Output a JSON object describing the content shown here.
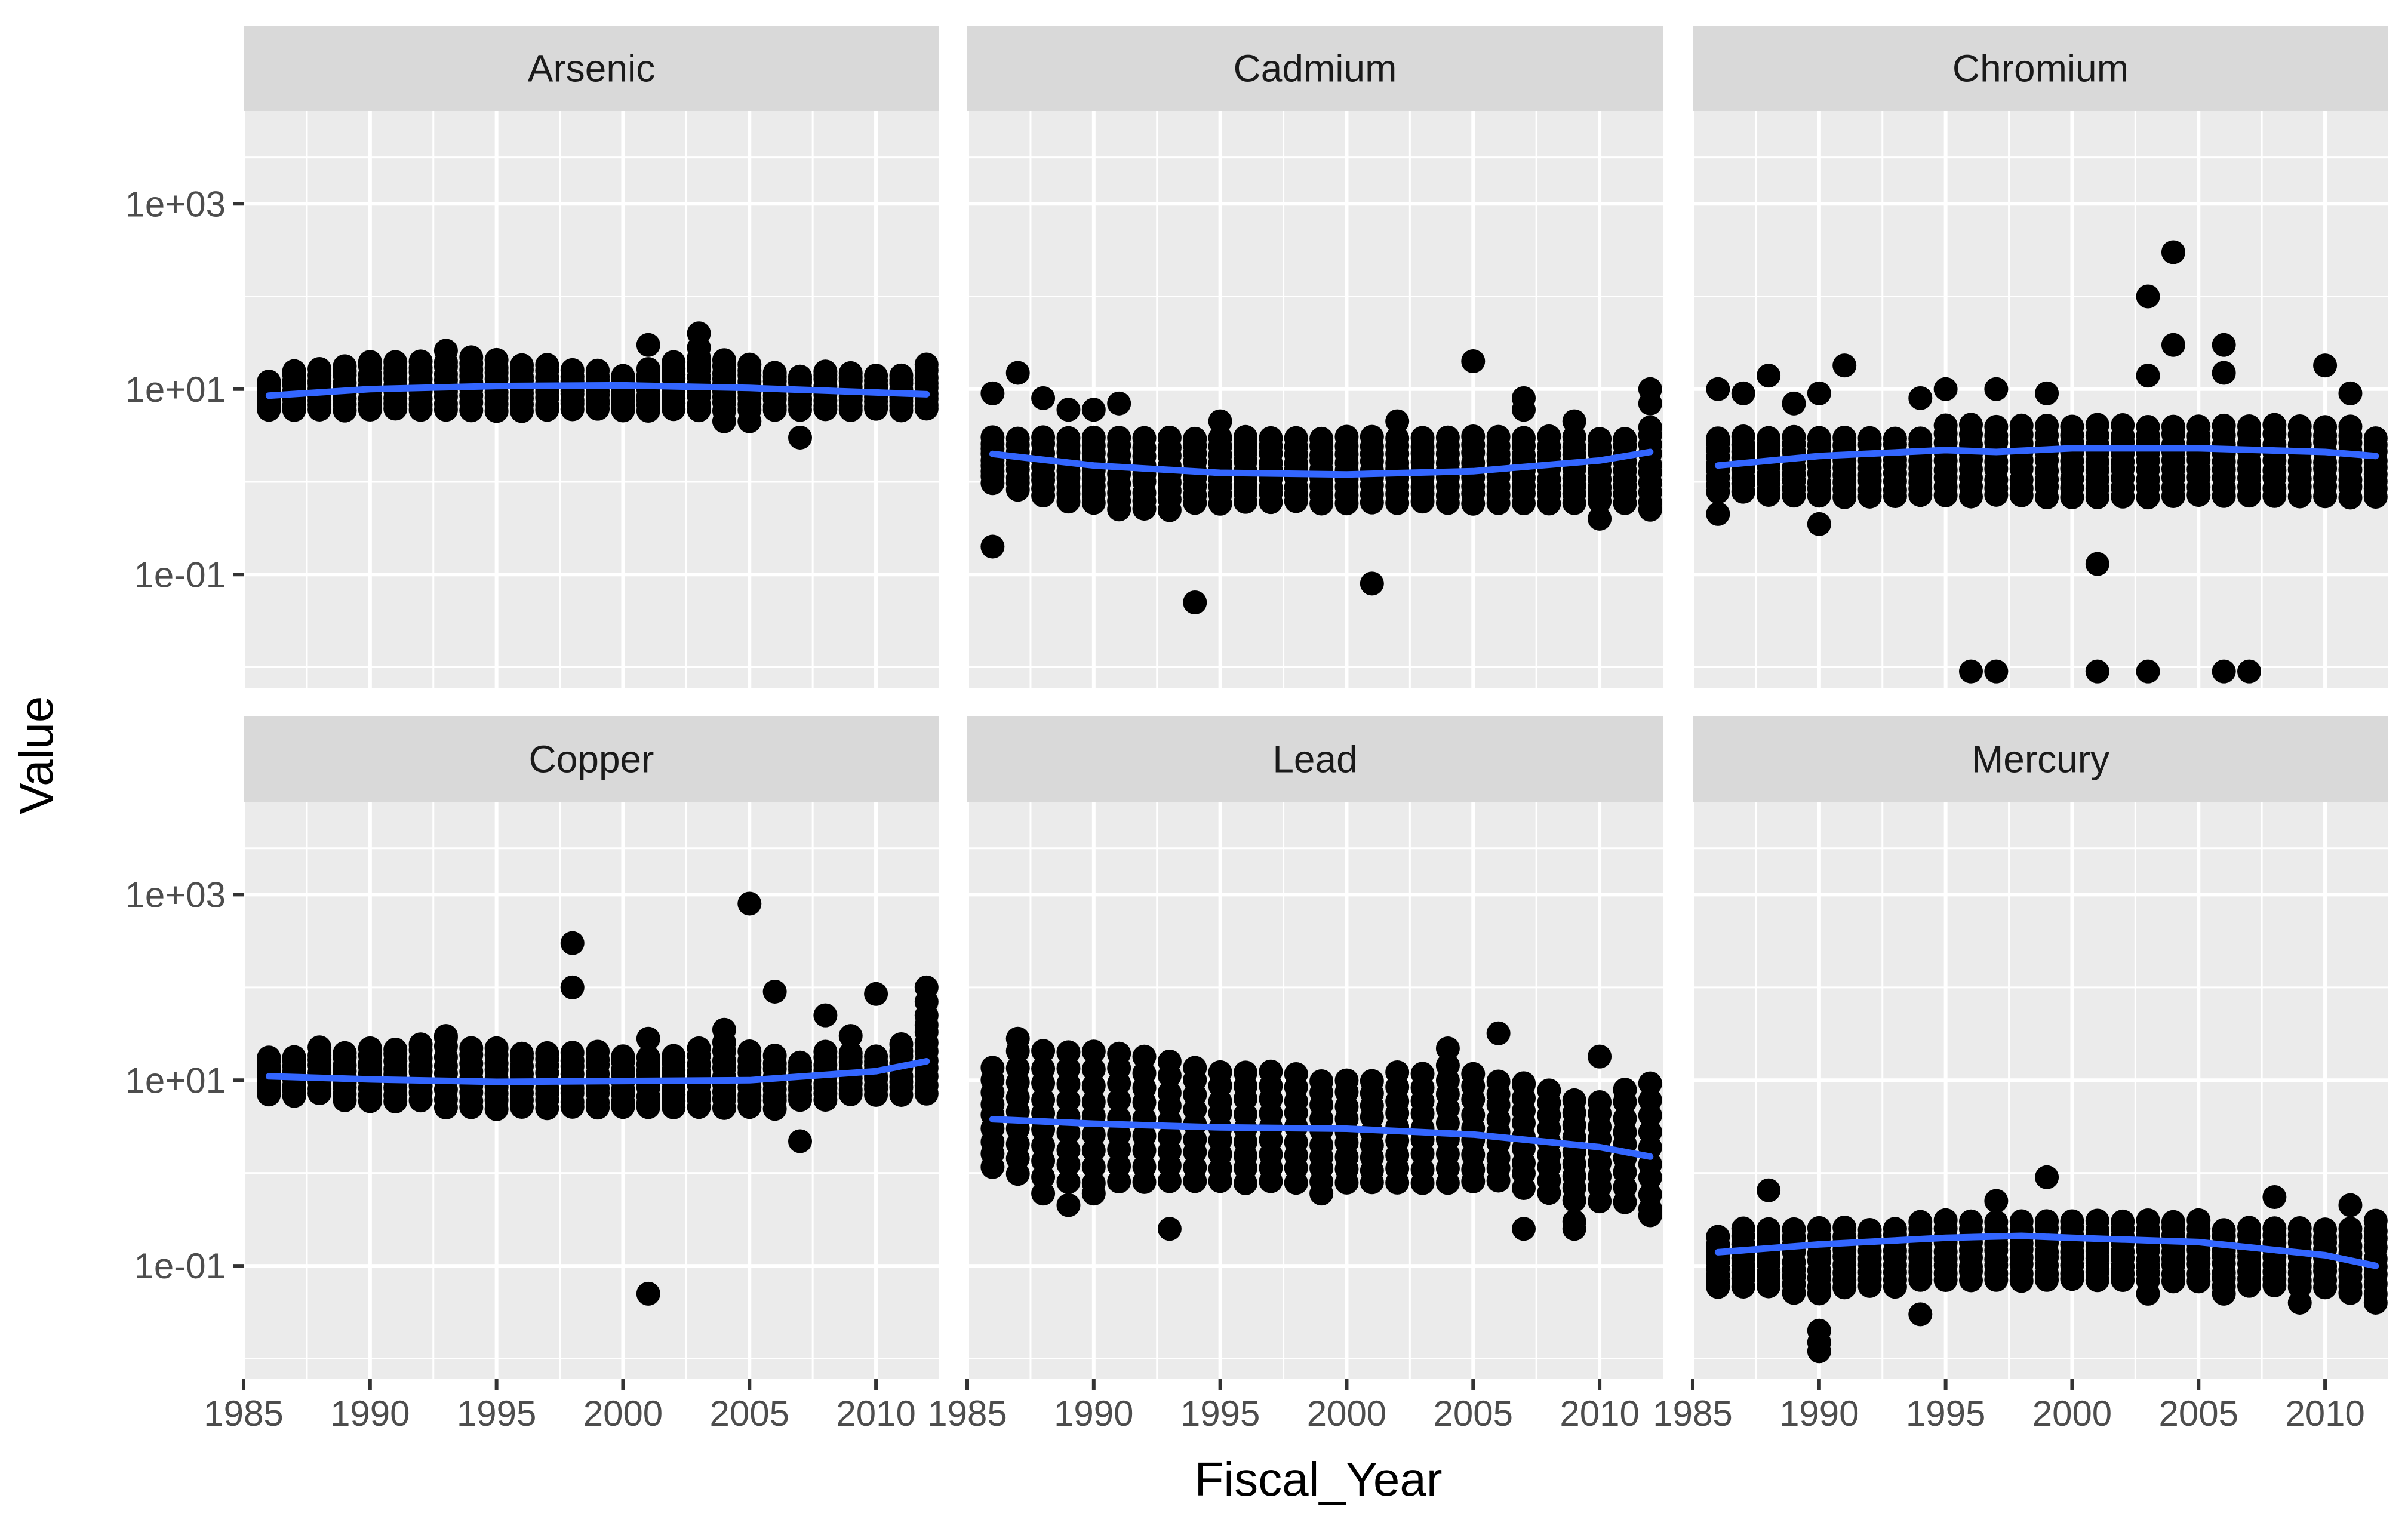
{
  "chart_data": {
    "type": "scatter",
    "layout": "facet_wrap 2x3",
    "xlabel": "Fiscal_Year",
    "ylabel": "Value",
    "x_ticks": [
      1985,
      1990,
      1995,
      2000,
      2005,
      2010
    ],
    "xlim": [
      1985,
      2012.5
    ],
    "y_scale": "log10",
    "y_ticks": [
      {
        "value": 1000,
        "label": "1e+03"
      },
      {
        "value": 10,
        "label": "1e+01"
      },
      {
        "value": 0.1,
        "label": "1e-01"
      }
    ],
    "ylim": [
      0.006,
      10000
    ],
    "grid": true,
    "point_color": "#000000",
    "smooth_color": "#3366FF",
    "panel_background": "#EBEBEB",
    "strip_background": "#D9D9D9",
    "panels": [
      {
        "name": "Arsenic",
        "band": {
          "lo": [
            6,
            6,
            6,
            6,
            6,
            6,
            6,
            6,
            6,
            6,
            6,
            6,
            6,
            6,
            6,
            6,
            6,
            6,
            6,
            6,
            6,
            6,
            6,
            6,
            6,
            6,
            6
          ],
          "hi": [
            12,
            16,
            16,
            18,
            20,
            20,
            20,
            20,
            22,
            20,
            18,
            18,
            16,
            16,
            14,
            16,
            20,
            22,
            20,
            18,
            15,
            14,
            16,
            15,
            14,
            14,
            18
          ]
        },
        "outliers": [
          [
            2001,
            30
          ],
          [
            2003,
            40
          ],
          [
            2003,
            28
          ],
          [
            1993,
            26
          ],
          [
            2007,
            3
          ],
          [
            2004,
            4.5
          ],
          [
            2005,
            4.5
          ]
        ],
        "trend": [
          [
            1986,
            8.5
          ],
          [
            1990,
            10
          ],
          [
            1995,
            10.8
          ],
          [
            2000,
            11
          ],
          [
            2005,
            10.3
          ],
          [
            2010,
            9.2
          ],
          [
            2012,
            8.8
          ]
        ]
      },
      {
        "name": "Cadmium",
        "band": {
          "lo": [
            1,
            0.8,
            0.7,
            0.6,
            0.6,
            0.5,
            0.5,
            0.5,
            0.6,
            0.6,
            0.6,
            0.6,
            0.6,
            0.6,
            0.6,
            0.6,
            0.6,
            0.6,
            0.6,
            0.6,
            0.6,
            0.6,
            0.6,
            0.6,
            0.6,
            0.6,
            0.6
          ],
          "hi": [
            3,
            3,
            3,
            3,
            3,
            3,
            3,
            3,
            3,
            3,
            3,
            3,
            3,
            3,
            3,
            3,
            3,
            3,
            3,
            3,
            3,
            3,
            3,
            3,
            3,
            3,
            4
          ]
        },
        "outliers": [
          [
            1986,
            0.2
          ],
          [
            1987,
            15
          ],
          [
            1986,
            9
          ],
          [
            1988,
            8
          ],
          [
            1989,
            6
          ],
          [
            1990,
            6
          ],
          [
            1991,
            7
          ],
          [
            1994,
            0.05
          ],
          [
            2001,
            0.08
          ],
          [
            2005,
            20
          ],
          [
            1995,
            4.5
          ],
          [
            2002,
            4.5
          ],
          [
            2007,
            8
          ],
          [
            2007,
            6
          ],
          [
            2009,
            4.5
          ],
          [
            2010,
            0.4
          ],
          [
            2012,
            10
          ],
          [
            2012,
            7
          ],
          [
            2012,
            0.5
          ]
        ],
        "trend": [
          [
            1986,
            2
          ],
          [
            1990,
            1.5
          ],
          [
            1995,
            1.25
          ],
          [
            2000,
            1.2
          ],
          [
            2005,
            1.3
          ],
          [
            2010,
            1.7
          ],
          [
            2012,
            2.1
          ]
        ]
      },
      {
        "name": "Chromium",
        "band": {
          "lo": [
            0.8,
            0.8,
            0.7,
            0.7,
            0.7,
            0.7,
            0.7,
            0.7,
            0.7,
            0.7,
            0.7,
            0.7,
            0.7,
            0.7,
            0.7,
            0.7,
            0.7,
            0.7,
            0.7,
            0.7,
            0.7,
            0.7,
            0.7,
            0.7,
            0.7,
            0.7,
            0.7
          ],
          "hi": [
            3,
            3,
            3,
            3,
            3,
            3,
            3,
            3,
            3,
            4,
            4,
            4,
            4,
            4,
            4,
            4,
            4,
            4,
            4,
            4,
            4,
            4,
            4,
            4,
            4,
            4,
            3
          ]
        },
        "outliers": [
          [
            1986,
            10
          ],
          [
            1987,
            9
          ],
          [
            1988,
            14
          ],
          [
            1990,
            9
          ],
          [
            1991,
            18
          ],
          [
            1989,
            7
          ],
          [
            1990,
            0.35
          ],
          [
            2001,
            0.13
          ],
          [
            2003,
            100
          ],
          [
            2004,
            300
          ],
          [
            2003,
            14
          ],
          [
            2004,
            30
          ],
          [
            2006,
            30
          ],
          [
            2006,
            15
          ],
          [
            2010,
            18
          ],
          [
            2011,
            9
          ],
          [
            1996,
            0.009
          ],
          [
            1997,
            0.009
          ],
          [
            2001,
            0.009
          ],
          [
            2003,
            0.009
          ],
          [
            2006,
            0.009
          ],
          [
            2007,
            0.009
          ],
          [
            1994,
            8
          ],
          [
            1995,
            10
          ],
          [
            1997,
            10
          ],
          [
            1999,
            9
          ],
          [
            1986,
            0.45
          ]
        ],
        "trend": [
          [
            1986,
            1.5
          ],
          [
            1990,
            1.9
          ],
          [
            1995,
            2.2
          ],
          [
            1997,
            2.1
          ],
          [
            2000,
            2.3
          ],
          [
            2005,
            2.3
          ],
          [
            2010,
            2.1
          ],
          [
            2012,
            1.9
          ]
        ]
      },
      {
        "name": "Copper",
        "band": {
          "lo": [
            7,
            7,
            7,
            6,
            6,
            6,
            6,
            5,
            5,
            5,
            5,
            5,
            5,
            5,
            5,
            5,
            5,
            5,
            5,
            5,
            5,
            6,
            6,
            7,
            7,
            7,
            7
          ],
          "hi": [
            18,
            18,
            22,
            20,
            22,
            22,
            25,
            28,
            22,
            22,
            20,
            20,
            20,
            20,
            18,
            18,
            18,
            22,
            25,
            20,
            18,
            16,
            20,
            20,
            18,
            25,
            40
          ]
        },
        "outliers": [
          [
            1998,
            300
          ],
          [
            1998,
            100
          ],
          [
            2005,
            800
          ],
          [
            2006,
            90
          ],
          [
            2008,
            50
          ],
          [
            2009,
            30
          ],
          [
            2010,
            85
          ],
          [
            2012,
            100
          ],
          [
            2012,
            70
          ],
          [
            2012,
            50
          ],
          [
            2001,
            0.05
          ],
          [
            2007,
            2.2
          ],
          [
            2004,
            35
          ],
          [
            2001,
            28
          ],
          [
            1993,
            30
          ]
        ],
        "trend": [
          [
            1986,
            11
          ],
          [
            1990,
            10.2
          ],
          [
            1995,
            9.6
          ],
          [
            2000,
            9.8
          ],
          [
            2005,
            10
          ],
          [
            2010,
            12.5
          ],
          [
            2012,
            16
          ]
        ]
      },
      {
        "name": "Lead",
        "band": {
          "lo": [
            1.2,
            1,
            0.9,
            0.8,
            0.8,
            0.8,
            0.8,
            0.8,
            0.8,
            0.8,
            0.8,
            0.8,
            0.8,
            0.8,
            0.8,
            0.8,
            0.8,
            0.8,
            0.8,
            0.8,
            0.8,
            0.7,
            0.6,
            0.5,
            0.5,
            0.5,
            0.4
          ],
          "hi": [
            14,
            20,
            20,
            20,
            20,
            20,
            18,
            16,
            14,
            12,
            12,
            12,
            12,
            10,
            10,
            10,
            12,
            12,
            14,
            12,
            10,
            9,
            8,
            6,
            6,
            8,
            9
          ]
        },
        "outliers": [
          [
            1987,
            28
          ],
          [
            1988,
            0.6
          ],
          [
            1989,
            0.45
          ],
          [
            1990,
            0.6
          ],
          [
            1993,
            0.25
          ],
          [
            1999,
            0.6
          ],
          [
            2004,
            22
          ],
          [
            2006,
            32
          ],
          [
            2007,
            9
          ],
          [
            2007,
            0.25
          ],
          [
            2009,
            0.3
          ],
          [
            2009,
            0.25
          ],
          [
            2010,
            18
          ],
          [
            2012,
            0.35
          ],
          [
            2011,
            0.7
          ]
        ],
        "trend": [
          [
            1986,
            3.8
          ],
          [
            1990,
            3.4
          ],
          [
            1995,
            3.1
          ],
          [
            2000,
            3.0
          ],
          [
            2005,
            2.6
          ],
          [
            2010,
            1.9
          ],
          [
            2012,
            1.5
          ]
        ]
      },
      {
        "name": "Mercury",
        "band": {
          "lo": [
            0.06,
            0.06,
            0.06,
            0.05,
            0.05,
            0.06,
            0.06,
            0.06,
            0.07,
            0.07,
            0.07,
            0.07,
            0.07,
            0.07,
            0.07,
            0.07,
            0.07,
            0.07,
            0.07,
            0.07,
            0.06,
            0.06,
            0.06,
            0.06,
            0.06,
            0.05,
            0.05
          ],
          "hi": [
            0.2,
            0.25,
            0.25,
            0.25,
            0.25,
            0.25,
            0.25,
            0.25,
            0.3,
            0.3,
            0.3,
            0.3,
            0.3,
            0.3,
            0.3,
            0.3,
            0.3,
            0.3,
            0.3,
            0.3,
            0.25,
            0.25,
            0.25,
            0.25,
            0.25,
            0.25,
            0.3
          ]
        },
        "outliers": [
          [
            1988,
            0.65
          ],
          [
            1990,
            0.015
          ],
          [
            1990,
            0.012
          ],
          [
            1990,
            0.02
          ],
          [
            1994,
            0.03
          ],
          [
            1999,
            0.9
          ],
          [
            2003,
            0.05
          ],
          [
            2006,
            0.05
          ],
          [
            2008,
            0.55
          ],
          [
            2009,
            0.04
          ],
          [
            2011,
            0.45
          ],
          [
            2012,
            0.04
          ],
          [
            1997,
            0.5
          ]
        ],
        "trend": [
          [
            1986,
            0.14
          ],
          [
            1990,
            0.17
          ],
          [
            1995,
            0.2
          ],
          [
            1998,
            0.21
          ],
          [
            2000,
            0.2
          ],
          [
            2005,
            0.18
          ],
          [
            2010,
            0.13
          ],
          [
            2012,
            0.1
          ]
        ]
      }
    ]
  }
}
